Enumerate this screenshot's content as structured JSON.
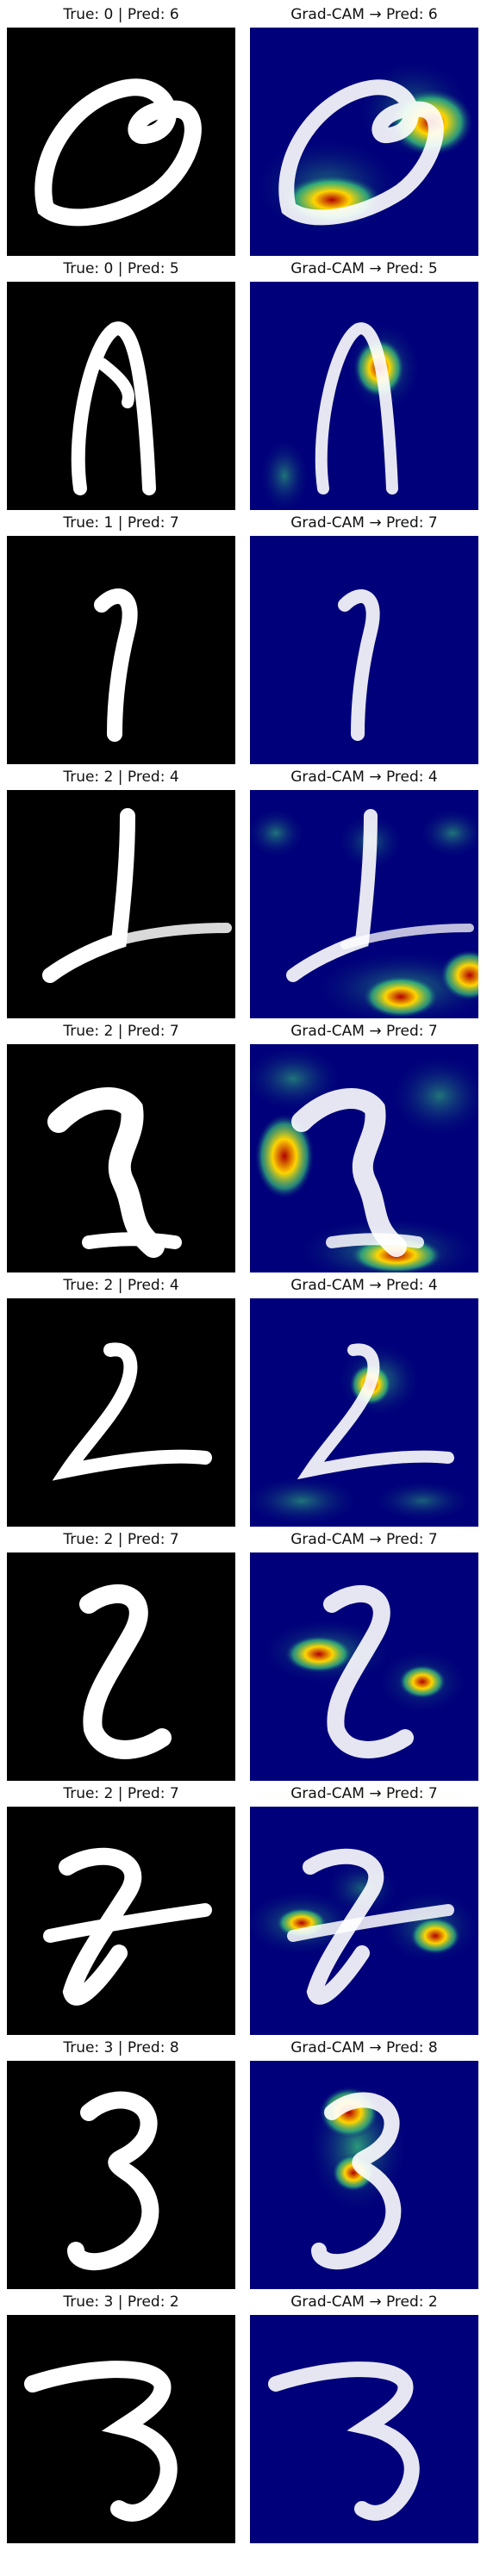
{
  "colors": {
    "raw_background": "#000000",
    "gradcam_background": "#00007a",
    "digit_stroke": "#ffffff",
    "heat_hot": "#b00000",
    "heat_warm": "#ffd400",
    "heat_mid": "#35c07a"
  },
  "rows": [
    {
      "raw_title": "True: 0 | Pred: 6",
      "cam_title": "Grad-CAM → Pred: 6"
    },
    {
      "raw_title": "True: 0 | Pred: 5",
      "cam_title": "Grad-CAM → Pred: 5"
    },
    {
      "raw_title": "True: 1 | Pred: 7",
      "cam_title": "Grad-CAM → Pred: 7"
    },
    {
      "raw_title": "True: 2 | Pred: 4",
      "cam_title": "Grad-CAM → Pred: 4"
    },
    {
      "raw_title": "True: 2 | Pred: 7",
      "cam_title": "Grad-CAM → Pred: 7"
    },
    {
      "raw_title": "True: 2 | Pred: 4",
      "cam_title": "Grad-CAM → Pred: 4"
    },
    {
      "raw_title": "True: 2 | Pred: 7",
      "cam_title": "Grad-CAM → Pred: 7"
    },
    {
      "raw_title": "True: 2 | Pred: 7",
      "cam_title": "Grad-CAM → Pred: 7"
    },
    {
      "raw_title": "True: 3 | Pred: 8",
      "cam_title": "Grad-CAM → Pred: 8"
    },
    {
      "raw_title": "True: 3 | Pred: 2",
      "cam_title": "Grad-CAM → Pred: 2"
    }
  ]
}
